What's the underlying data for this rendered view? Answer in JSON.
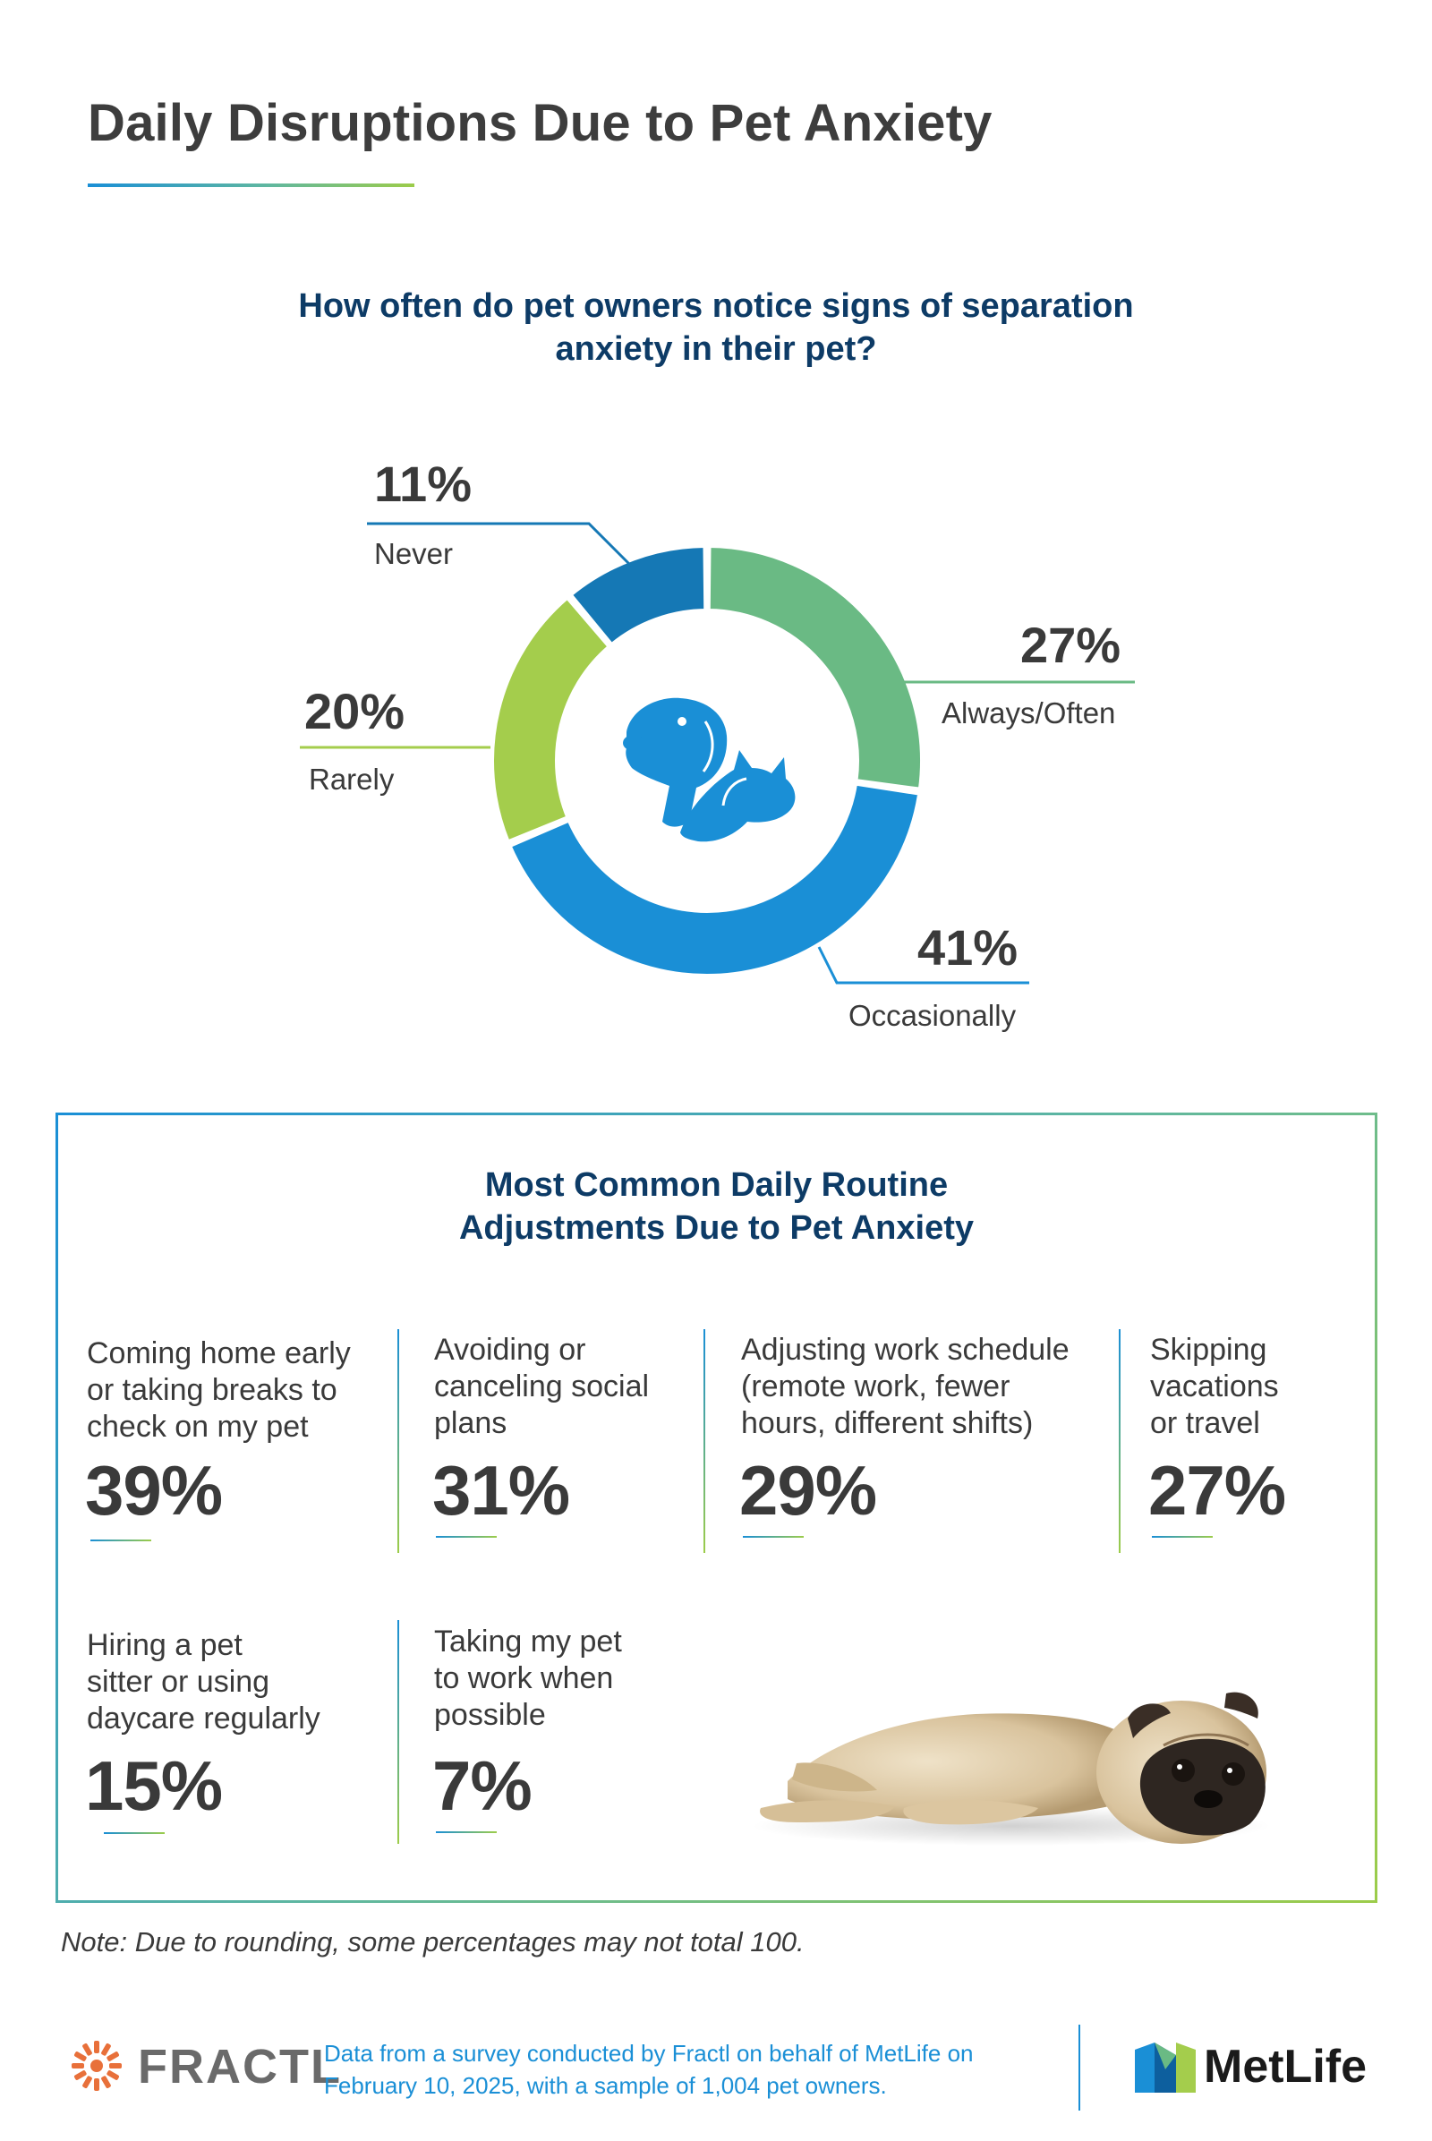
{
  "page": {
    "title": "Daily Disruptions Due to Pet Anxiety"
  },
  "chart_data": [
    {
      "type": "pie",
      "title": "How often do pet owners notice signs of separation anxiety in their pet?",
      "categories": [
        "Always/Often",
        "Occasionally",
        "Rarely",
        "Never"
      ],
      "values": [
        27,
        41,
        20,
        11
      ],
      "value_labels": [
        "27%",
        "41%",
        "20%",
        "11%"
      ],
      "colors": [
        "#6aba84",
        "#1a8fd6",
        "#a4cd4c",
        "#1578b5"
      ],
      "center_icon": "dog-and-cat-icon"
    },
    {
      "type": "table",
      "title": "Most Common Daily Routine Adjustments Due to Pet Anxiety",
      "items": [
        {
          "label": "Coming home early or taking breaks to check on my pet",
          "value": 39,
          "value_label": "39%"
        },
        {
          "label": "Avoiding or canceling social plans",
          "value": 31,
          "value_label": "31%"
        },
        {
          "label": "Adjusting work schedule (remote work, fewer hours, different shifts)",
          "value": 29,
          "value_label": "29%"
        },
        {
          "label": "Skipping vacations or travel",
          "value": 27,
          "value_label": "27%"
        },
        {
          "label": "Hiring a pet sitter or using daycare regularly",
          "value": 15,
          "value_label": "15%"
        },
        {
          "label": "Taking my pet to work when possible",
          "value": 7,
          "value_label": "7%"
        }
      ]
    }
  ],
  "labels": {
    "always": {
      "pct": "27%",
      "name": "Always/Often"
    },
    "occasionally": {
      "pct": "41%",
      "name": "Occasionally"
    },
    "rarely": {
      "pct": "20%",
      "name": "Rarely"
    },
    "never": {
      "pct": "11%",
      "name": "Never"
    }
  },
  "stats": {
    "s1": {
      "label_lines": [
        "Coming home early",
        "or taking breaks to",
        "check on my pet"
      ],
      "value": "39%"
    },
    "s2": {
      "label_lines": [
        "Avoiding or",
        "canceling social",
        "plans"
      ],
      "value": "31%"
    },
    "s3": {
      "label_lines": [
        "Adjusting work schedule",
        "(remote work, fewer",
        "hours, different shifts)"
      ],
      "value": "29%"
    },
    "s4": {
      "label_lines": [
        "Skipping",
        "vacations",
        "or travel"
      ],
      "value": "27%"
    },
    "s5": {
      "label_lines": [
        "Hiring a pet",
        "sitter or using",
        "daycare regularly"
      ],
      "value": "15%"
    },
    "s6": {
      "label_lines": [
        "Taking my pet",
        "to work when",
        "possible"
      ],
      "value": "7%"
    }
  },
  "note": "Note: Due to rounding, some percentages may not total 100.",
  "footer": {
    "fractl": "FRACTL",
    "source_line1": "Data from a survey conducted by Fractl on behalf of MetLife on",
    "source_line2": "February 10, 2025, with a sample of 1,004 pet owners.",
    "metlife": "MetLife"
  },
  "icons": {
    "center": "dog-and-cat-icon",
    "pug": "pug-photo",
    "fractl_logo": "fractl-logo-icon",
    "metlife_logo": "metlife-logo-icon"
  }
}
